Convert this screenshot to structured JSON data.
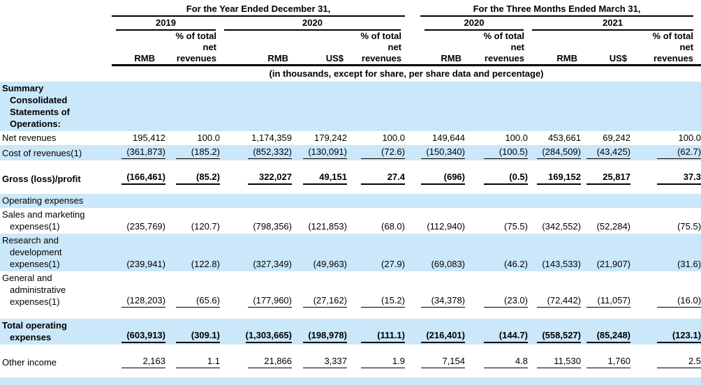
{
  "header": {
    "groups": [
      {
        "title": "For the Year Ended December 31,",
        "periods": [
          {
            "label": "2019"
          },
          {
            "label": "2020"
          }
        ]
      },
      {
        "title": "For the Three Months Ended March 31,",
        "periods": [
          {
            "label": "2020"
          },
          {
            "label": "2021"
          }
        ]
      }
    ],
    "col_headers": [
      "RMB",
      "% of total net revenues",
      "RMB",
      "US$",
      "% of total net revenues",
      "RMB",
      "% of total net revenues",
      "RMB",
      "US$",
      "% of total net revenues"
    ],
    "units_note": "(in thousands, except for share, per share data and percentage)"
  },
  "colors": {
    "highlight": "#cbe7fa",
    "rule": "#000000"
  },
  "rows": [
    {
      "name": "summary-heading",
      "type": "data",
      "bold": true,
      "highlight": true,
      "underline": false,
      "label_lines": [
        "Summary",
        "Consolidated",
        "Statements of",
        "Operations:"
      ],
      "values": [
        "",
        "",
        "",
        "",
        "",
        "",
        "",
        "",
        "",
        ""
      ]
    },
    {
      "name": "net-revenues",
      "type": "data",
      "bold": false,
      "highlight": false,
      "underline": false,
      "label_lines": [
        "Net revenues"
      ],
      "values": [
        "195,412",
        "100.0",
        "1,174,359",
        "179,242",
        "100.0",
        "149,644",
        "100.0",
        "453,661",
        "69,242",
        "100.0"
      ]
    },
    {
      "name": "cost-of-revenues",
      "type": "data",
      "bold": false,
      "highlight": true,
      "underline": true,
      "label_lines": [
        "Cost of revenues(1)"
      ],
      "values": [
        "(361,873)",
        "(185.2)",
        "(852,332)",
        "(130,091)",
        "(72.6)",
        "(150,340)",
        "(100.5)",
        "(284,509)",
        "(43,425)",
        "(62.7)"
      ]
    },
    {
      "name": "spacer-1",
      "type": "spacer"
    },
    {
      "name": "gross-loss-profit",
      "type": "data",
      "bold": true,
      "highlight": false,
      "underline": true,
      "label_lines": [
        "Gross (loss)/profit"
      ],
      "values": [
        "(166,461)",
        "(85.2)",
        "322,027",
        "49,151",
        "27.4",
        "(696)",
        "(0.5)",
        "169,152",
        "25,817",
        "37.3"
      ]
    },
    {
      "name": "spacer-2",
      "type": "spacer-sm"
    },
    {
      "name": "operating-expenses-heading",
      "type": "data",
      "bold": false,
      "highlight": true,
      "underline": false,
      "label_lines": [
        "Operating expenses"
      ],
      "values": [
        "",
        "",
        "",
        "",
        "",
        "",
        "",
        "",
        "",
        ""
      ]
    },
    {
      "name": "sales-marketing-expenses",
      "type": "data",
      "bold": false,
      "highlight": false,
      "underline": false,
      "label_lines": [
        "Sales and marketing",
        "expenses(1)"
      ],
      "values": [
        "(235,769)",
        "(120.7)",
        "(798,356)",
        "(121,853)",
        "(68.0)",
        "(112,940)",
        "(75.5)",
        "(342,552)",
        "(52,284)",
        "(75.5)"
      ]
    },
    {
      "name": "research-development-expenses",
      "type": "data",
      "bold": false,
      "highlight": true,
      "underline": false,
      "label_lines": [
        "Research and",
        "development",
        "expenses(1)"
      ],
      "values": [
        "(239,941)",
        "(122.8)",
        "(327,349)",
        "(49,963)",
        "(27.9)",
        "(69,083)",
        "(46.2)",
        "(143,533)",
        "(21,907)",
        "(31.6)"
      ]
    },
    {
      "name": "general-administrative-expenses",
      "type": "data",
      "bold": false,
      "highlight": false,
      "underline": true,
      "label_lines": [
        "General and",
        "administrative",
        "expenses(1)"
      ],
      "values": [
        "(128,203)",
        "(65.6)",
        "(177,960)",
        "(27,162)",
        "(15.2)",
        "(34,378)",
        "(23.0)",
        "(72,442)",
        "(11,057)",
        "(16.0)"
      ]
    },
    {
      "name": "spacer-3",
      "type": "spacer"
    },
    {
      "name": "total-operating-expenses",
      "type": "data",
      "bold": true,
      "highlight": true,
      "underline": true,
      "label_lines": [
        "Total operating",
        "expenses"
      ],
      "values": [
        "(603,913)",
        "(309.1)",
        "(1,303,665)",
        "(198,978)",
        "(111.1)",
        "(216,401)",
        "(144.7)",
        "(558,527)",
        "(85,248)",
        "(123.1)"
      ]
    },
    {
      "name": "spacer-4",
      "type": "spacer"
    },
    {
      "name": "other-income",
      "type": "data",
      "bold": false,
      "highlight": false,
      "underline": true,
      "label_lines": [
        "Other income"
      ],
      "values": [
        "2,163",
        "1.1",
        "21,866",
        "3,337",
        "1.9",
        "7,154",
        "4.8",
        "11,530",
        "1,760",
        "2.5"
      ]
    },
    {
      "name": "spacer-5",
      "type": "spacer-sm"
    },
    {
      "name": "bottom-highlight-bar",
      "type": "bar"
    }
  ]
}
